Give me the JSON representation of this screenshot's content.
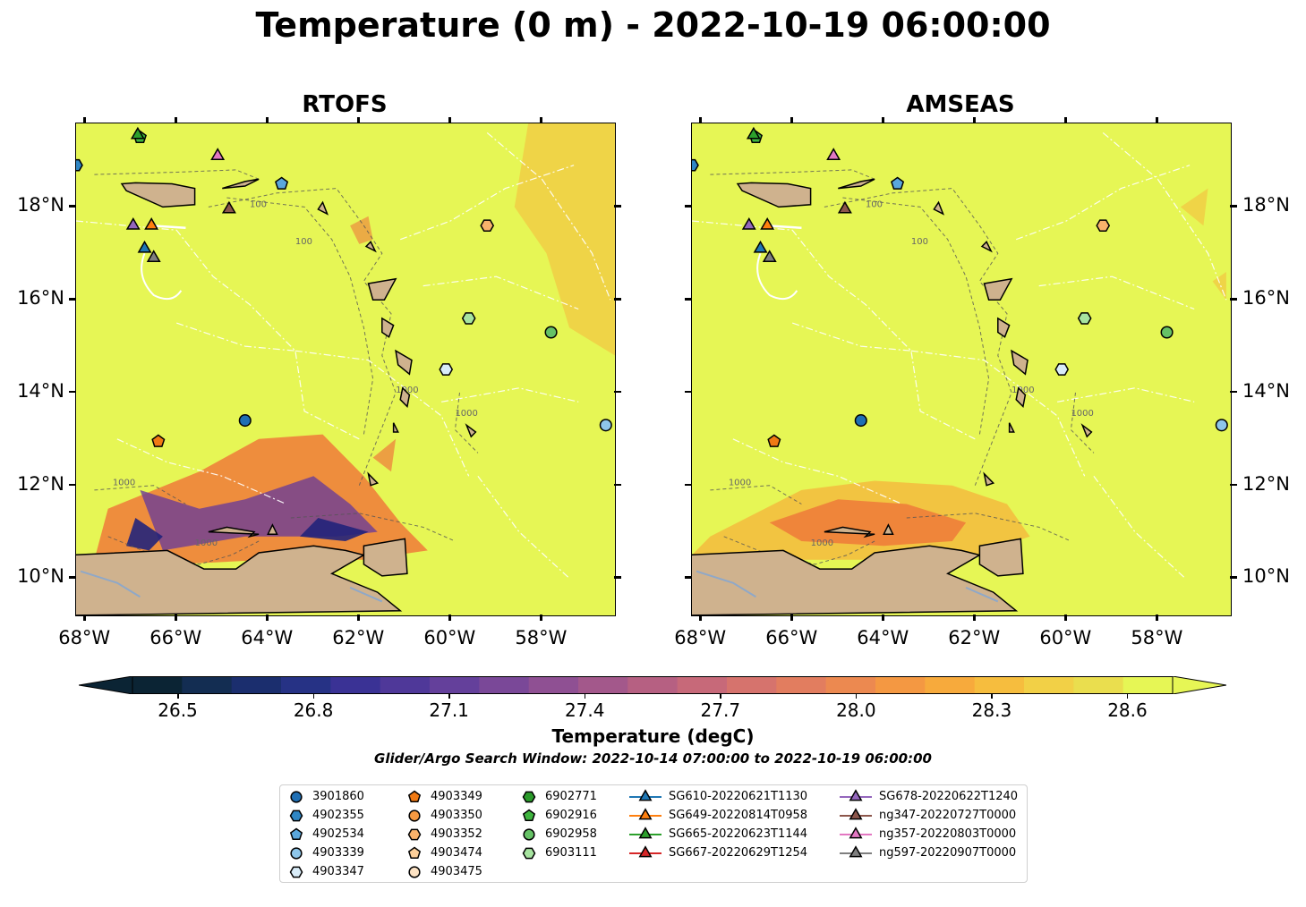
{
  "title": "Temperature (0 m) - 2022-10-19 06:00:00",
  "panels": [
    {
      "name": "RTOFS",
      "lat_label_side": "left",
      "variant": "rtofs"
    },
    {
      "name": "AMSEAS",
      "lat_label_side": "right",
      "variant": "amseas"
    }
  ],
  "map_extent": {
    "lon_min": -68.2,
    "lon_max": -56.4,
    "lat_min": 9.2,
    "lat_max": 19.8
  },
  "lon_ticks": [
    {
      "value": -68,
      "label": "68°W"
    },
    {
      "value": -66,
      "label": "66°W"
    },
    {
      "value": -64,
      "label": "64°W"
    },
    {
      "value": -62,
      "label": "62°W"
    },
    {
      "value": -60,
      "label": "60°W"
    },
    {
      "value": -58,
      "label": "58°W"
    }
  ],
  "lat_ticks": [
    {
      "value": 18,
      "label": "18°N"
    },
    {
      "value": 16,
      "label": "16°N"
    },
    {
      "value": 14,
      "label": "14°N"
    },
    {
      "value": 12,
      "label": "12°N"
    },
    {
      "value": 10,
      "label": "10°N"
    }
  ],
  "contour_labels": [
    "100",
    "1000"
  ],
  "colorbar": {
    "label": "Temperature (degC)",
    "vmin": 26.4,
    "vmax": 28.7,
    "ticks": [
      "26.5",
      "26.8",
      "27.1",
      "27.4",
      "27.7",
      "28.0",
      "28.3",
      "28.6"
    ],
    "extend": "both"
  },
  "search_window": "Glider/Argo Search Window: 2022-10-14 07:00:00 to 2022-10-19 06:00:00",
  "colors": {
    "ocean": "#e6f655",
    "land": "#cfb28e",
    "argo_dark_blue": "#1f6fb4",
    "argo_light_blue": "#8ec6ea",
    "argo_orange": "#f07a14",
    "argo_green": "#2a9a2a"
  },
  "platforms": [
    {
      "id": "3901860",
      "kind": "argo",
      "shape": "circle",
      "color": "#1f6fb4",
      "lon": -64.5,
      "lat": 13.4
    },
    {
      "id": "4902355",
      "kind": "argo",
      "shape": "hexagon",
      "color": "#2f86c4",
      "lon": -68.2,
      "lat": 18.9
    },
    {
      "id": "4902534",
      "kind": "argo",
      "shape": "pentagon",
      "color": "#5aa7dc",
      "lon": -63.7,
      "lat": 18.5
    },
    {
      "id": "4903339",
      "kind": "argo",
      "shape": "circle",
      "color": "#8ec6ea",
      "lon": -56.6,
      "lat": 13.3
    },
    {
      "id": "4903347",
      "kind": "argo",
      "shape": "hexagon",
      "color": "#d9ecf8",
      "lon": -60.1,
      "lat": 14.5
    },
    {
      "id": "4903349",
      "kind": "argo",
      "shape": "pentagon",
      "color": "#f07a14",
      "lon": -66.4,
      "lat": 12.95
    },
    {
      "id": "4903350",
      "kind": "argo",
      "shape": "circle",
      "color": "#f79a42",
      "lon": null,
      "lat": null
    },
    {
      "id": "4903352",
      "kind": "argo",
      "shape": "hexagon",
      "color": "#f8b26b",
      "lon": -59.2,
      "lat": 17.6
    },
    {
      "id": "4903474",
      "kind": "argo",
      "shape": "pentagon",
      "color": "#fcce99",
      "lon": null,
      "lat": null
    },
    {
      "id": "4903475",
      "kind": "argo",
      "shape": "circle",
      "color": "#fde3c4",
      "lon": null,
      "lat": null
    },
    {
      "id": "6902771",
      "kind": "argo",
      "shape": "hexagon",
      "color": "#2a9a2a",
      "lon": null,
      "lat": null
    },
    {
      "id": "6902916",
      "kind": "argo",
      "shape": "pentagon",
      "color": "#3fb53f",
      "lon": -66.8,
      "lat": 19.5
    },
    {
      "id": "6902958",
      "kind": "argo",
      "shape": "circle",
      "color": "#66c266",
      "lon": -57.8,
      "lat": 15.3
    },
    {
      "id": "6903111",
      "kind": "argo",
      "shape": "hexagon",
      "color": "#a7e4a0",
      "lon": -59.6,
      "lat": 15.6
    },
    {
      "id": "SG610-20220621T1130",
      "kind": "glider",
      "shape": "triangle",
      "color": "#1f77b4",
      "lon": -66.7,
      "lat": 17.1
    },
    {
      "id": "SG649-20220814T0958",
      "kind": "glider",
      "shape": "triangle",
      "color": "#ff7f0e",
      "lon": -66.55,
      "lat": 17.6
    },
    {
      "id": "SG665-20220623T1144",
      "kind": "glider",
      "shape": "triangle",
      "color": "#2ca02c",
      "lon": -66.85,
      "lat": 19.55
    },
    {
      "id": "SG667-20220629T1254",
      "kind": "glider",
      "shape": "triangle",
      "color": "#d62728",
      "lon": null,
      "lat": null
    },
    {
      "id": "SG678-20220622T1240",
      "kind": "glider",
      "shape": "triangle",
      "color": "#9467bd",
      "lon": -66.95,
      "lat": 17.6
    },
    {
      "id": "ng347-20220727T0000",
      "kind": "glider",
      "shape": "triangle",
      "color": "#8c564b",
      "lon": -64.85,
      "lat": 17.95
    },
    {
      "id": "ng357-20220803T0000",
      "kind": "glider",
      "shape": "triangle",
      "color": "#e377c2",
      "lon": -65.1,
      "lat": 19.1
    },
    {
      "id": "ng597-20220907T0000",
      "kind": "glider",
      "shape": "triangle",
      "color": "#7f7f7f",
      "lon": -66.5,
      "lat": 16.9
    }
  ]
}
